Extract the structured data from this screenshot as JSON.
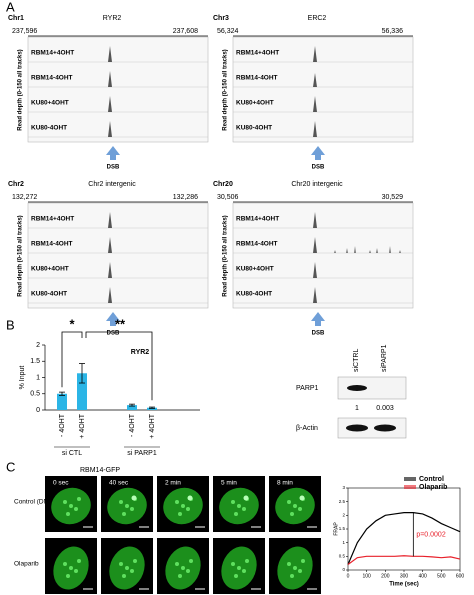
{
  "figure_labels": [
    "A",
    "B",
    "C"
  ],
  "panel_a": {
    "y_axis_label": "Read depth (0-150 all tracks)",
    "dsb_label": "DSB",
    "tracks": [
      {
        "chromosome": "Chr1",
        "region": "RYR2",
        "start": "237,596",
        "end": "237,608",
        "samples": [
          "RBM14+4OHT",
          "RBM14-4OHT",
          "KU80+4OHT",
          "KU80-4OHT"
        ]
      },
      {
        "chromosome": "Chr3",
        "region": "ERC2",
        "start": "56,324",
        "end": "56,336",
        "samples": [
          "RBM14+4OHT",
          "RBM14-4OHT",
          "KU80+4OHT",
          "KU80-4OHT"
        ]
      },
      {
        "chromosome": "Chr2",
        "region": "Chr2 intergenic",
        "start": "132,272",
        "end": "132,286",
        "samples": [
          "RBM14+4OHT",
          "RBM14-4OHT",
          "KU80+4OHT",
          "KU80-4OHT"
        ]
      },
      {
        "chromosome": "Chr20",
        "region": "Chr20 intergenic",
        "start": "30,506",
        "end": "30,529",
        "samples": [
          "RBM14+4OHT",
          "RBM14-4OHT",
          "KU80+4OHT",
          "KU80-4OHT"
        ]
      }
    ]
  },
  "chart_data": [
    {
      "type": "bar",
      "title": "RYR2",
      "y_label": "% Input",
      "categories": [
        "- 4OHT",
        "+ 4OHT",
        "- 4OHT",
        "+ 4OHT"
      ],
      "groups": [
        "si CTL",
        "si PARP1"
      ],
      "values": [
        0.5,
        1.13,
        0.15,
        0.07
      ],
      "errors": [
        0.05,
        0.3,
        0.03,
        0.02
      ],
      "color": "#2bb5e6",
      "ylim": [
        0,
        2
      ],
      "yticks": [
        0,
        0.5,
        1,
        1.5,
        2
      ],
      "annotations": [
        "*",
        "**"
      ]
    },
    {
      "type": "line",
      "x_label": "Time (sec)",
      "y_label": "FRAP",
      "x": [
        0,
        50,
        100,
        150,
        200,
        250,
        300,
        350,
        400,
        450,
        500,
        550,
        600
      ],
      "series": [
        {
          "name": "Control",
          "color": "#000000",
          "values": [
            0.2,
            1.0,
            1.5,
            1.8,
            2.0,
            2.05,
            2.1,
            2.1,
            2.05,
            1.9,
            1.7,
            1.55,
            1.4
          ]
        },
        {
          "name": "Olaparib",
          "color": "#e8202a",
          "values": [
            0.2,
            0.45,
            0.5,
            0.5,
            0.5,
            0.5,
            0.52,
            0.5,
            0.5,
            0.48,
            0.45,
            0.48,
            0.4
          ]
        }
      ],
      "xlim": [
        0,
        600
      ],
      "xticks": [
        0,
        100,
        200,
        300,
        400,
        500,
        600
      ],
      "ylim": [
        0,
        3
      ],
      "yticks": [
        0,
        0.5,
        1,
        1.5,
        2,
        2.5,
        3
      ],
      "annotation": "p=0.0002"
    }
  ],
  "panel_b_blot": {
    "lanes": [
      "siCTRL",
      "siPARP1"
    ],
    "proteins": [
      "PARP1",
      "β-Actin"
    ],
    "quantification": [
      "1",
      "0.003"
    ]
  },
  "panel_c": {
    "title": "RBM14-GFP",
    "timepoints": [
      "0 sec",
      "40 sec",
      "2 min",
      "5 min",
      "8 min"
    ],
    "conditions": [
      "Control (DMSO)",
      "Olaparib"
    ]
  }
}
